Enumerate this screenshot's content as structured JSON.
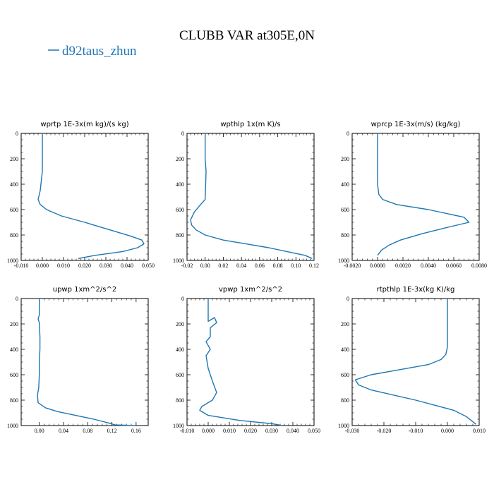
{
  "title": "CLUBB VAR at305E,0N",
  "legend": {
    "label": "d92taus_zhun",
    "color": "#1f77b4"
  },
  "chart_data": [
    {
      "type": "line",
      "title": "wprtp   1E-3x(m kg)/(s kg)",
      "xlim": [
        -0.01,
        0.05
      ],
      "ylim": [
        1000,
        0
      ],
      "xticks": [
        -0.01,
        0.0,
        0.01,
        0.02,
        0.03,
        0.04,
        0.05
      ],
      "xtick_labels": [
        "-0.010",
        "0.000",
        "0.010",
        "0.020",
        "0.030",
        "0.040",
        "0.050"
      ],
      "yticks": [
        0,
        200,
        400,
        600,
        800,
        1000
      ],
      "ytick_labels": [
        "0",
        "200",
        "400",
        "600",
        "800",
        "1000"
      ],
      "series": [
        {
          "name": "d92taus_zhun",
          "color": "#1f77b4",
          "x": [
            0.0,
            0.0,
            0.0,
            0.0,
            -0.001,
            -0.002,
            -0.001,
            0.002,
            0.009,
            0.02,
            0.032,
            0.042,
            0.047,
            0.048,
            0.045,
            0.038,
            0.025,
            0.017
          ],
          "y": [
            0,
            100,
            200,
            300,
            450,
            520,
            560,
            600,
            650,
            700,
            760,
            810,
            840,
            870,
            900,
            930,
            960,
            985
          ]
        }
      ]
    },
    {
      "type": "line",
      "title": "wpthlp   1x(m K)/s",
      "xlim": [
        -0.02,
        0.12
      ],
      "ylim": [
        1000,
        0
      ],
      "xticks": [
        -0.02,
        0.0,
        0.02,
        0.04,
        0.06,
        0.08,
        0.1,
        0.12
      ],
      "xtick_labels": [
        "-0.02",
        "0.00",
        "0.02",
        "0.04",
        "0.06",
        "0.08",
        "0.10",
        "0.12"
      ],
      "yticks": [
        0,
        200,
        400,
        600,
        800,
        1000
      ],
      "ytick_labels": [
        "0",
        "200",
        "400",
        "600",
        "800",
        "1000"
      ],
      "series": [
        {
          "name": "d92taus_zhun",
          "color": "#1f77b4",
          "x": [
            0.0,
            0.0,
            0.0,
            0.001,
            0.0,
            -0.005,
            -0.012,
            -0.016,
            -0.015,
            -0.01,
            0.0,
            0.02,
            0.045,
            0.07,
            0.09,
            0.11,
            0.118
          ],
          "y": [
            0,
            100,
            200,
            300,
            520,
            560,
            620,
            680,
            720,
            760,
            800,
            840,
            870,
            900,
            930,
            960,
            985
          ]
        }
      ]
    },
    {
      "type": "line",
      "title": "wprcp   1E-3x(m/s) (kg/kg)",
      "xlim": [
        -0.002,
        0.008
      ],
      "ylim": [
        1000,
        0
      ],
      "xticks": [
        -0.002,
        0.0,
        0.002,
        0.004,
        0.006,
        0.008
      ],
      "xtick_labels": [
        "-0.0020",
        "0.0000",
        "0.0020",
        "0.0040",
        "0.0060",
        "0.0080"
      ],
      "yticks": [
        0,
        200,
        400,
        600,
        800,
        1000
      ],
      "ytick_labels": [
        "0",
        "200",
        "400",
        "600",
        "800",
        "1000"
      ],
      "series": [
        {
          "name": "d92taus_zhun",
          "color": "#1f77b4",
          "x": [
            0.0,
            0.0,
            0.0,
            0.0,
            0.0001,
            0.0004,
            0.0015,
            0.004,
            0.0068,
            0.0072,
            0.0055,
            0.0035,
            0.0018,
            0.0009,
            0.0003,
            0.0
          ],
          "y": [
            0,
            100,
            200,
            400,
            480,
            520,
            560,
            600,
            660,
            700,
            740,
            790,
            840,
            880,
            920,
            960
          ]
        }
      ]
    },
    {
      "type": "line",
      "title": "upwp   1xm^2/s^2",
      "xlim": [
        -0.03,
        0.18
      ],
      "ylim": [
        1000,
        0
      ],
      "xticks": [
        0.0,
        0.04,
        0.08,
        0.12,
        0.16
      ],
      "xtick_labels": [
        "0.00",
        "0.04",
        "0.08",
        "0.12",
        "0.16"
      ],
      "yticks": [
        0,
        200,
        400,
        600,
        800,
        1000
      ],
      "ytick_labels": [
        "0",
        "200",
        "400",
        "600",
        "800",
        "1000"
      ],
      "series": [
        {
          "name": "d92taus_zhun",
          "color": "#1f77b4",
          "x": [
            0.0,
            0.0,
            -0.002,
            0.0,
            0.001,
            0.001,
            0.0,
            0.0,
            -0.001,
            -0.003,
            -0.002,
            0.01,
            0.03,
            0.06,
            0.09,
            0.115,
            0.125,
            0.16
          ],
          "y": [
            0,
            130,
            160,
            190,
            300,
            400,
            500,
            600,
            700,
            760,
            820,
            860,
            890,
            920,
            950,
            980,
            995,
            1000
          ]
        }
      ]
    },
    {
      "type": "line",
      "title": "vpwp   1xm^2/s^2",
      "xlim": [
        -0.01,
        0.05
      ],
      "ylim": [
        1000,
        0
      ],
      "xticks": [
        -0.01,
        0.0,
        0.01,
        0.02,
        0.03,
        0.04,
        0.05
      ],
      "xtick_labels": [
        "-0.010",
        "0.000",
        "0.010",
        "0.020",
        "0.030",
        "0.040",
        "0.050"
      ],
      "yticks": [
        0,
        200,
        400,
        600,
        800,
        1000
      ],
      "ytick_labels": [
        "0",
        "200",
        "400",
        "600",
        "800",
        "1000"
      ],
      "series": [
        {
          "name": "d92taus_zhun",
          "color": "#1f77b4",
          "x": [
            0.0,
            0.0,
            0.0,
            0.003,
            0.004,
            0.001,
            0.001,
            -0.001,
            0.001,
            -0.001,
            0.0,
            0.002,
            0.004,
            0.002,
            -0.003,
            -0.004,
            0.0,
            0.015,
            0.03,
            0.035
          ],
          "y": [
            0,
            100,
            180,
            150,
            190,
            230,
            300,
            340,
            400,
            450,
            550,
            650,
            740,
            800,
            850,
            880,
            920,
            960,
            985,
            1000
          ]
        }
      ]
    },
    {
      "type": "line",
      "title": "rtpthlp   1E-3x(kg K)/kg",
      "xlim": [
        -0.03,
        0.01
      ],
      "ylim": [
        1000,
        0
      ],
      "xticks": [
        -0.03,
        -0.02,
        -0.01,
        0.0,
        0.01
      ],
      "xtick_labels": [
        "-0.030",
        "-0.020",
        "-0.010",
        "0.000",
        "0.010"
      ],
      "yticks": [
        0,
        200,
        400,
        600,
        800,
        1000
      ],
      "ytick_labels": [
        "0",
        "200",
        "400",
        "600",
        "800",
        "1000"
      ],
      "series": [
        {
          "name": "d92taus_zhun",
          "color": "#1f77b4",
          "x": [
            0.0,
            0.0,
            0.0,
            -0.0005,
            -0.002,
            -0.006,
            -0.015,
            -0.024,
            -0.029,
            -0.028,
            -0.024,
            -0.017,
            -0.01,
            -0.004,
            0.002,
            0.006,
            0.009
          ],
          "y": [
            0,
            200,
            380,
            440,
            480,
            520,
            560,
            600,
            640,
            680,
            720,
            760,
            800,
            840,
            880,
            930,
            990
          ]
        }
      ]
    }
  ]
}
